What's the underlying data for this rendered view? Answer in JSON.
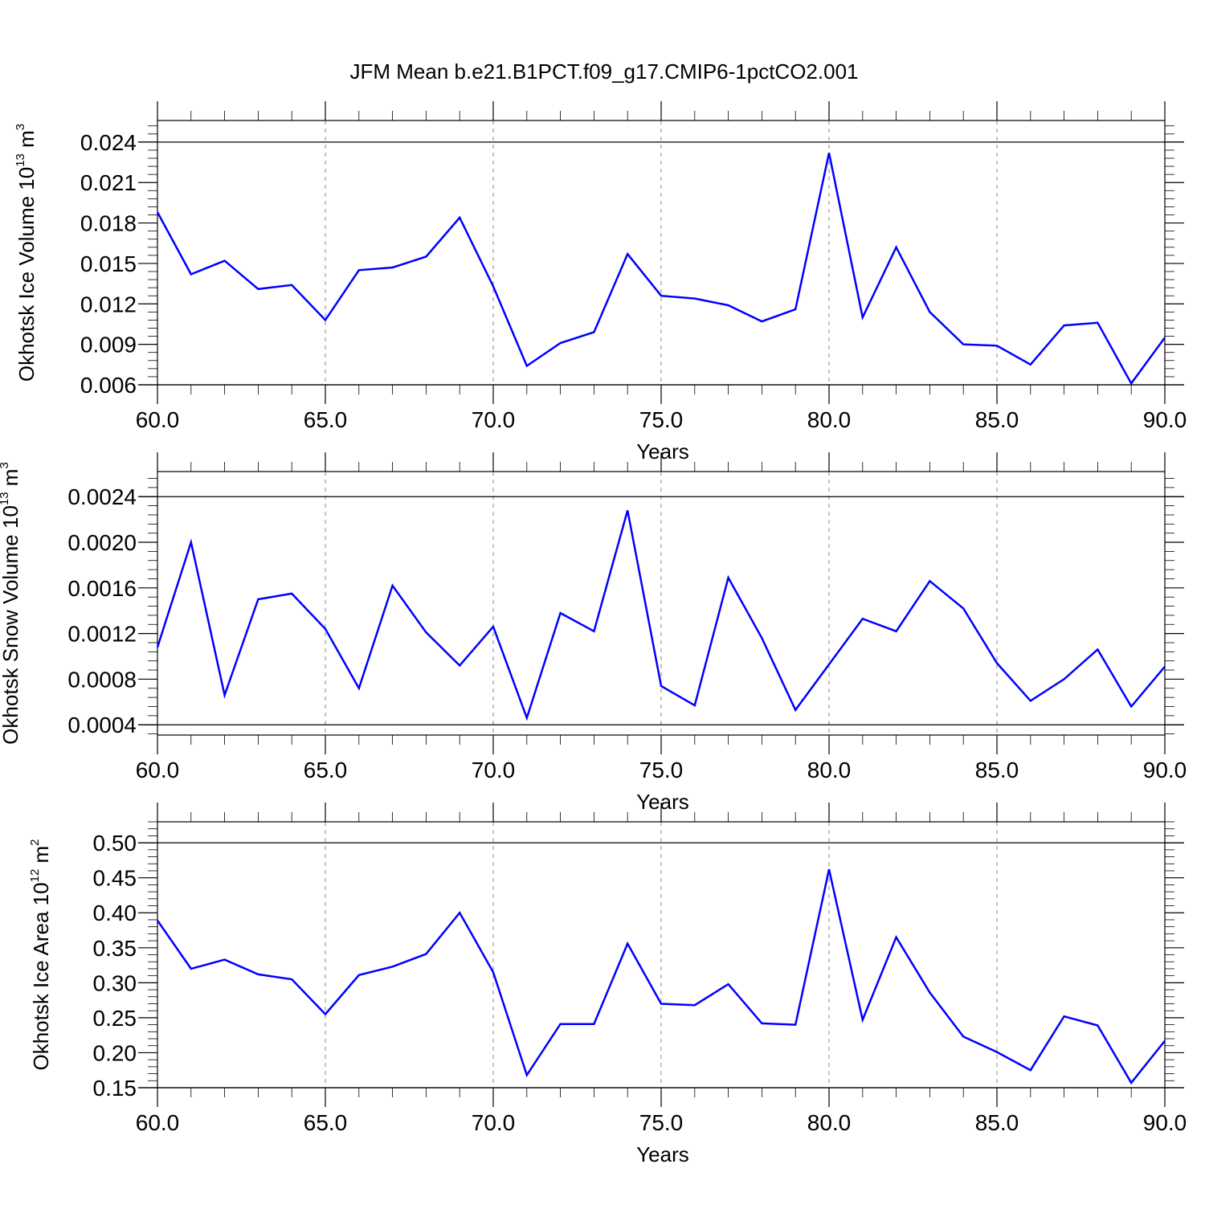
{
  "title": "JFM Mean b.e21.B1PCT.f09_g17.CMIP6-1pctCO2.001",
  "chart_data": [
    {
      "type": "line",
      "xlabel": "Years",
      "ylabel": "Okhotsk Ice Volume 10",
      "ylabel_exp": "13",
      "ylabel_unit": " m",
      "ylabel_unit_exp": "3",
      "xlim": [
        60,
        90
      ],
      "ylim": [
        0.006,
        0.0256
      ],
      "xticks": [
        "60.0",
        "65.0",
        "70.0",
        "75.0",
        "80.0",
        "85.0",
        "90.0"
      ],
      "yticks": [
        "0.006",
        "0.009",
        "0.012",
        "0.015",
        "0.018",
        "0.021",
        "0.024"
      ],
      "grid": "dashed vertical",
      "color": "#0000ff",
      "x": [
        60,
        61,
        62,
        63,
        64,
        65,
        66,
        67,
        68,
        69,
        70,
        71,
        72,
        73,
        74,
        75,
        76,
        77,
        78,
        79,
        80,
        81,
        82,
        83,
        84,
        85,
        86,
        87,
        88,
        89,
        90
      ],
      "y": [
        0.0188,
        0.0142,
        0.0152,
        0.0131,
        0.0134,
        0.0108,
        0.0145,
        0.0147,
        0.0155,
        0.0184,
        0.0133,
        0.0074,
        0.0091,
        0.0099,
        0.0157,
        0.0126,
        0.0124,
        0.0119,
        0.0107,
        0.0116,
        0.0232,
        0.011,
        0.0162,
        0.0114,
        0.009,
        0.0089,
        0.0075,
        0.0104,
        0.0106,
        0.0061,
        0.0095
      ]
    },
    {
      "type": "line",
      "xlabel": "Years",
      "ylabel": "Okhotsk Snow Volume 10",
      "ylabel_exp": "13",
      "ylabel_unit": " m",
      "ylabel_unit_exp": "3",
      "xlim": [
        60,
        90
      ],
      "ylim": [
        0.00031,
        0.00262
      ],
      "xticks": [
        "60.0",
        "65.0",
        "70.0",
        "75.0",
        "80.0",
        "85.0",
        "90.0"
      ],
      "yticks": [
        "0.0004",
        "0.0008",
        "0.0012",
        "0.0016",
        "0.0020",
        "0.0024"
      ],
      "grid": "dashed vertical",
      "color": "#0000ff",
      "x": [
        60,
        61,
        62,
        63,
        64,
        65,
        66,
        67,
        68,
        69,
        70,
        71,
        72,
        73,
        74,
        75,
        76,
        77,
        78,
        79,
        80,
        81,
        82,
        83,
        84,
        85,
        86,
        87,
        88,
        89,
        90
      ],
      "y": [
        0.00108,
        0.002,
        0.00066,
        0.0015,
        0.00155,
        0.00124,
        0.00072,
        0.00162,
        0.00121,
        0.00092,
        0.00126,
        0.00046,
        0.00138,
        0.00122,
        0.00228,
        0.00074,
        0.00057,
        0.00169,
        0.00116,
        0.00053,
        0.00093,
        0.00133,
        0.00122,
        0.00166,
        0.00142,
        0.00094,
        0.00061,
        0.0008,
        0.00106,
        0.00056,
        0.00091
      ]
    },
    {
      "type": "line",
      "xlabel": "Years",
      "ylabel": "Okhotsk Ice Area 10",
      "ylabel_exp": "12",
      "ylabel_unit": " m",
      "ylabel_unit_exp": "2",
      "xlim": [
        60,
        90
      ],
      "ylim": [
        0.15,
        0.53
      ],
      "xticks": [
        "60.0",
        "65.0",
        "70.0",
        "75.0",
        "80.0",
        "85.0",
        "90.0"
      ],
      "yticks": [
        "0.15",
        "0.20",
        "0.25",
        "0.30",
        "0.35",
        "0.40",
        "0.45",
        "0.50"
      ],
      "grid": "dashed vertical",
      "color": "#0000ff",
      "x": [
        60,
        61,
        62,
        63,
        64,
        65,
        66,
        67,
        68,
        69,
        70,
        71,
        72,
        73,
        74,
        75,
        76,
        77,
        78,
        79,
        80,
        81,
        82,
        83,
        84,
        85,
        86,
        87,
        88,
        89,
        90
      ],
      "y": [
        0.389,
        0.32,
        0.333,
        0.312,
        0.305,
        0.255,
        0.311,
        0.323,
        0.341,
        0.4,
        0.315,
        0.168,
        0.241,
        0.241,
        0.356,
        0.27,
        0.268,
        0.298,
        0.242,
        0.24,
        0.462,
        0.247,
        0.365,
        0.286,
        0.223,
        0.201,
        0.175,
        0.252,
        0.239,
        0.157,
        0.217
      ]
    }
  ]
}
